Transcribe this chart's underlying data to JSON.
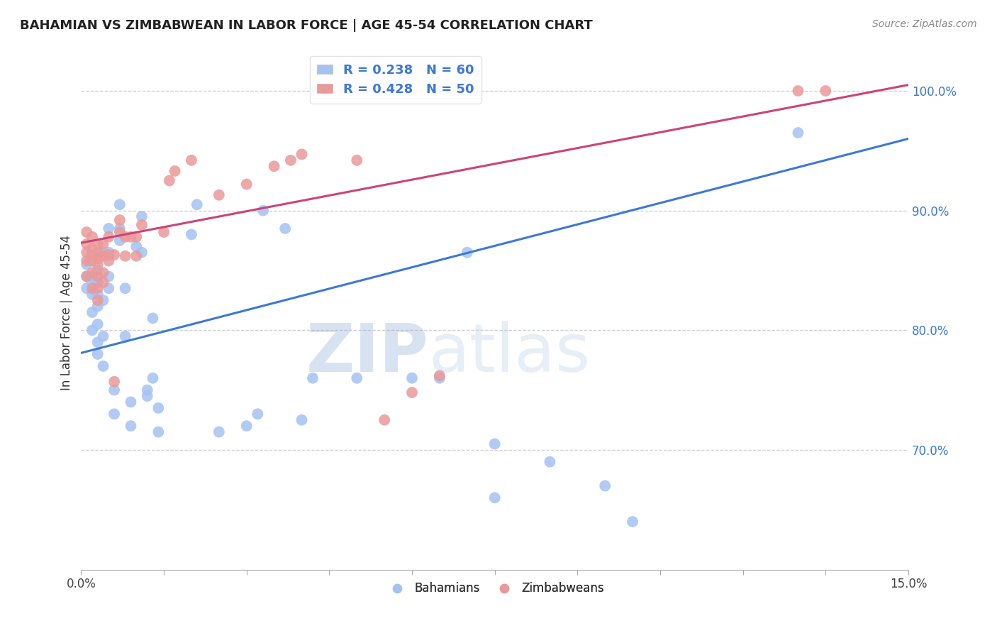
{
  "title": "BAHAMIAN VS ZIMBABWEAN IN LABOR FORCE | AGE 45-54 CORRELATION CHART",
  "source": "Source: ZipAtlas.com",
  "ylabel": "In Labor Force | Age 45-54",
  "xlim": [
    0.0,
    0.15
  ],
  "ylim": [
    0.6,
    1.03
  ],
  "blue_R": 0.238,
  "blue_N": 60,
  "pink_R": 0.428,
  "pink_N": 50,
  "blue_color": "#a4c2f4",
  "pink_color": "#ea9999",
  "blue_line_color": "#3c78d8",
  "pink_line_color": "#cc4477",
  "watermark_zip": "ZIP",
  "watermark_atlas": "atlas",
  "blue_line_y0": 0.781,
  "blue_line_y1": 0.96,
  "pink_line_y0": 0.873,
  "pink_line_y1": 1.005,
  "blue_scatter_x": [
    0.001,
    0.001,
    0.001,
    0.002,
    0.002,
    0.002,
    0.002,
    0.002,
    0.003,
    0.003,
    0.003,
    0.003,
    0.003,
    0.003,
    0.003,
    0.004,
    0.004,
    0.004,
    0.004,
    0.005,
    0.005,
    0.005,
    0.005,
    0.006,
    0.006,
    0.007,
    0.007,
    0.007,
    0.008,
    0.008,
    0.009,
    0.009,
    0.01,
    0.011,
    0.011,
    0.012,
    0.012,
    0.013,
    0.013,
    0.014,
    0.014,
    0.02,
    0.021,
    0.025,
    0.03,
    0.032,
    0.033,
    0.037,
    0.04,
    0.042,
    0.05,
    0.06,
    0.065,
    0.07,
    0.075,
    0.075,
    0.085,
    0.095,
    0.1,
    0.13
  ],
  "blue_scatter_y": [
    0.835,
    0.845,
    0.855,
    0.845,
    0.8,
    0.815,
    0.83,
    0.84,
    0.78,
    0.79,
    0.805,
    0.82,
    0.83,
    0.84,
    0.85,
    0.77,
    0.795,
    0.825,
    0.865,
    0.835,
    0.845,
    0.865,
    0.885,
    0.73,
    0.75,
    0.875,
    0.885,
    0.905,
    0.795,
    0.835,
    0.72,
    0.74,
    0.87,
    0.865,
    0.895,
    0.745,
    0.75,
    0.76,
    0.81,
    0.715,
    0.735,
    0.88,
    0.905,
    0.715,
    0.72,
    0.73,
    0.9,
    0.885,
    0.725,
    0.76,
    0.76,
    0.76,
    0.76,
    0.865,
    0.66,
    0.705,
    0.69,
    0.67,
    0.64,
    0.965
  ],
  "pink_scatter_x": [
    0.001,
    0.001,
    0.001,
    0.001,
    0.001,
    0.002,
    0.002,
    0.002,
    0.002,
    0.002,
    0.002,
    0.003,
    0.003,
    0.003,
    0.003,
    0.003,
    0.003,
    0.003,
    0.004,
    0.004,
    0.004,
    0.004,
    0.005,
    0.005,
    0.005,
    0.006,
    0.006,
    0.007,
    0.007,
    0.008,
    0.008,
    0.009,
    0.01,
    0.01,
    0.011,
    0.015,
    0.016,
    0.017,
    0.02,
    0.025,
    0.03,
    0.035,
    0.038,
    0.04,
    0.05,
    0.055,
    0.06,
    0.065,
    0.13,
    0.135
  ],
  "pink_scatter_y": [
    0.845,
    0.858,
    0.865,
    0.872,
    0.882,
    0.835,
    0.848,
    0.858,
    0.863,
    0.868,
    0.878,
    0.825,
    0.835,
    0.845,
    0.855,
    0.86,
    0.865,
    0.872,
    0.84,
    0.848,
    0.862,
    0.872,
    0.858,
    0.863,
    0.878,
    0.757,
    0.863,
    0.882,
    0.892,
    0.862,
    0.878,
    0.878,
    0.862,
    0.878,
    0.888,
    0.882,
    0.925,
    0.933,
    0.942,
    0.913,
    0.922,
    0.937,
    0.942,
    0.947,
    0.942,
    0.725,
    0.748,
    0.762,
    1.0,
    1.0
  ]
}
